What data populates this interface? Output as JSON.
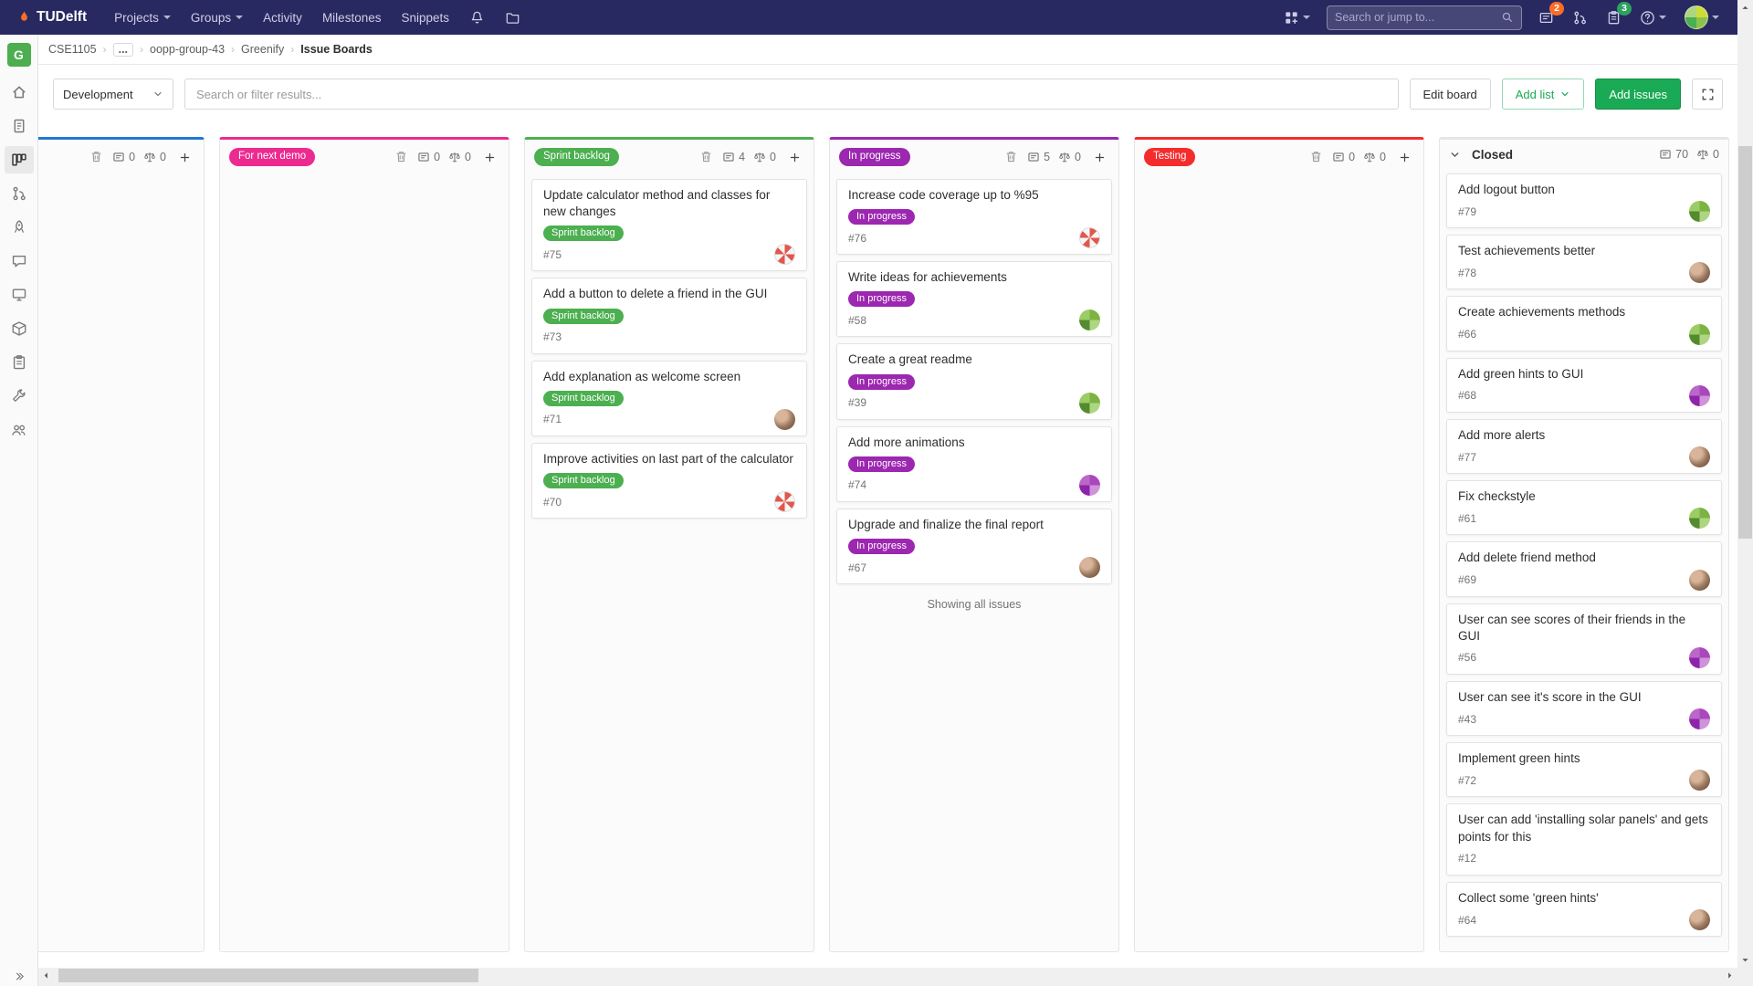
{
  "colors": {
    "navbar_bg": "#292961",
    "accent_green": "#1aaa55",
    "issues_badge_bg": "#fc6d26",
    "todos_badge_bg": "#2da160"
  },
  "navbar": {
    "logo_text": "TUDelft",
    "menu": [
      "Projects",
      "Groups",
      "Activity",
      "Milestones",
      "Snippets"
    ],
    "search_placeholder": "Search or jump to...",
    "issues_badge": "2",
    "todos_badge": "3"
  },
  "sidebar": {
    "project_initial": "G",
    "items": [
      "project-overview",
      "repository",
      "issue-boards",
      "merge-requests",
      "ci-cd",
      "discussions",
      "operations",
      "packages",
      "analytics",
      "settings",
      "members"
    ],
    "active": "issue-boards"
  },
  "breadcrumb": {
    "items": [
      {
        "label": "CSE1105"
      },
      {
        "label": "...",
        "type": "ellipsis"
      },
      {
        "label": "oopp-group-43"
      },
      {
        "label": "Greenify"
      },
      {
        "label": "Issue Boards",
        "current": true
      }
    ]
  },
  "controls": {
    "board_dropdown": "Development",
    "filter_placeholder": "Search or filter results...",
    "edit_board_label": "Edit board",
    "add_list_label": "Add list",
    "add_issues_label": "Add issues"
  },
  "board": {
    "columns": [
      {
        "title": "",
        "accent_color": "#1f78d1",
        "issue_count": "0",
        "total_weight": "0",
        "deletable": true,
        "addable": true,
        "cards": []
      },
      {
        "title": "For next demo",
        "accent_color": "#ec2a8f",
        "issue_count": "0",
        "total_weight": "0",
        "deletable": true,
        "addable": true,
        "cards": []
      },
      {
        "title": "Sprint backlog",
        "accent_color": "#4caf50",
        "issue_count": "4",
        "total_weight": "0",
        "deletable": true,
        "addable": true,
        "cards": [
          {
            "title": "Update calculator method and classes for new changes",
            "label": "Sprint backlog",
            "id": "#75",
            "avatar": "pinwheel"
          },
          {
            "title": "Add a button to delete a friend in the GUI",
            "label": "Sprint backlog",
            "id": "#73"
          },
          {
            "title": "Add explanation as welcome screen",
            "label": "Sprint backlog",
            "id": "#71",
            "avatar": "photo"
          },
          {
            "title": "Improve activities on last part of the calculator",
            "label": "Sprint backlog",
            "id": "#70",
            "avatar": "pinwheel"
          }
        ]
      },
      {
        "title": "In progress",
        "accent_color": "#9c27b0",
        "issue_count": "5",
        "total_weight": "0",
        "deletable": true,
        "addable": true,
        "footer_text": "Showing all issues",
        "cards": [
          {
            "title": "Increase code coverage up to %95",
            "label": "In progress",
            "id": "#76",
            "avatar": "pinwheel"
          },
          {
            "title": "Write ideas for achievements",
            "label": "In progress",
            "id": "#58",
            "avatar": "green"
          },
          {
            "title": "Create a great readme",
            "label": "In progress",
            "id": "#39",
            "avatar": "green"
          },
          {
            "title": "Add more animations",
            "label": "In progress",
            "id": "#74",
            "avatar": "purple"
          },
          {
            "title": "Upgrade and finalize the final report",
            "label": "In progress",
            "id": "#67",
            "avatar": "photo"
          }
        ]
      },
      {
        "title": "Testing",
        "accent_color": "#f42c2c",
        "issue_count": "0",
        "total_weight": "0",
        "deletable": true,
        "addable": true,
        "cards": []
      },
      {
        "title": "Closed",
        "accent_color": null,
        "collapsible": true,
        "issue_count": "70",
        "total_weight": "0",
        "deletable": false,
        "addable": false,
        "cards": [
          {
            "title": "Add logout button",
            "id": "#79",
            "avatar": "green"
          },
          {
            "title": "Test achievements better",
            "id": "#78",
            "avatar": "photo"
          },
          {
            "title": "Create achievements methods",
            "id": "#66",
            "avatar": "green"
          },
          {
            "title": "Add green hints to GUI",
            "id": "#68",
            "avatar": "purple"
          },
          {
            "title": "Add more alerts",
            "id": "#77",
            "avatar": "photo"
          },
          {
            "title": "Fix checkstyle",
            "id": "#61",
            "avatar": "green"
          },
          {
            "title": "Add delete friend method",
            "id": "#69",
            "avatar": "photo"
          },
          {
            "title": "User can see scores of their friends in the GUI",
            "id": "#56",
            "avatar": "purple"
          },
          {
            "title": "User can see it's score in the GUI",
            "id": "#43",
            "avatar": "purple"
          },
          {
            "title": "Implement green hints",
            "id": "#72",
            "avatar": "photo"
          },
          {
            "title": "User can add 'installing solar panels' and gets points for this",
            "id": "#12"
          },
          {
            "title": "Collect some 'green hints'",
            "id": "#64",
            "avatar": "photo"
          }
        ]
      }
    ]
  }
}
